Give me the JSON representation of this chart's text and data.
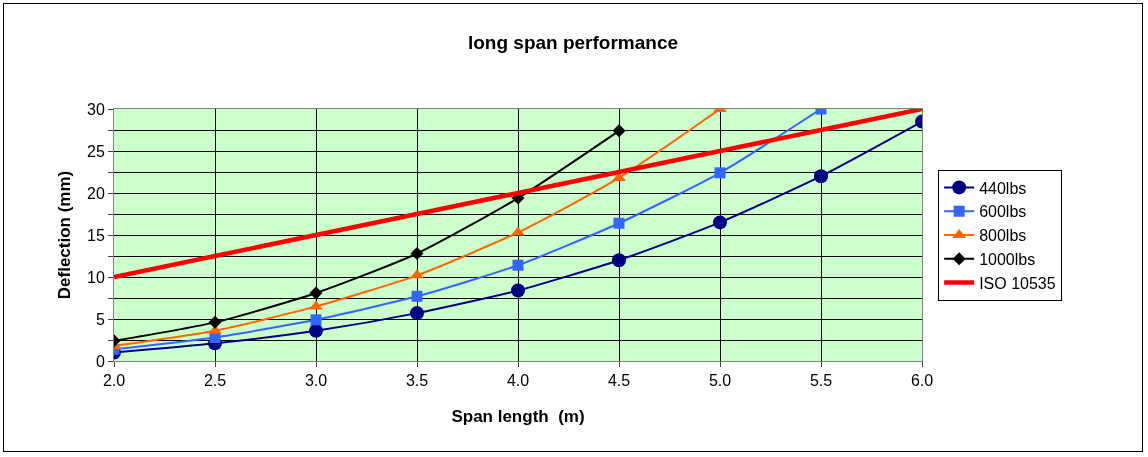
{
  "chart_data": {
    "type": "line",
    "title": "long span performance",
    "xlabel": "Span length  (m)",
    "ylabel": "Deflection (mm)",
    "x": [
      2.0,
      2.5,
      3.0,
      3.5,
      4.0,
      4.5,
      5.0,
      5.5,
      6.0
    ],
    "series": [
      {
        "name": "440lbs",
        "color": "#000080",
        "marker": "circle",
        "values": [
          1.0,
          2.1,
          3.6,
          5.7,
          8.4,
          12.0,
          16.5,
          22.0,
          28.5
        ]
      },
      {
        "name": "600lbs",
        "color": "#3366ff",
        "marker": "square",
        "values": [
          1.4,
          2.8,
          4.9,
          7.7,
          11.4,
          16.4,
          22.4,
          30.0,
          null
        ]
      },
      {
        "name": "800lbs",
        "color": "#ff6600",
        "marker": "triangle",
        "values": [
          1.8,
          3.6,
          6.5,
          10.2,
          15.3,
          21.8,
          30.0,
          null,
          null
        ]
      },
      {
        "name": "1000lbs",
        "color": "#000000",
        "marker": "diamond",
        "values": [
          2.4,
          4.6,
          8.1,
          12.8,
          19.4,
          27.4,
          null,
          null,
          null
        ]
      },
      {
        "name": "ISO 10535",
        "color": "#ff0000",
        "marker": "none",
        "values": [
          10,
          12.5,
          15,
          17.5,
          20,
          22.5,
          25,
          27.5,
          30
        ]
      }
    ],
    "xlim": [
      2.0,
      6.0
    ],
    "xticks": [
      {
        "value": 2.0,
        "label": "2.0"
      },
      {
        "value": 2.5,
        "label": "2.5"
      },
      {
        "value": 3.0,
        "label": "3.0"
      },
      {
        "value": 3.5,
        "label": "3.5"
      },
      {
        "value": 4.0,
        "label": "4.0"
      },
      {
        "value": 4.5,
        "label": "4.5"
      },
      {
        "value": 5.0,
        "label": "5.0"
      },
      {
        "value": 5.5,
        "label": "5.5"
      },
      {
        "value": 6.0,
        "label": "6.0"
      }
    ],
    "ylim": [
      0,
      30
    ],
    "yticks": [
      0,
      {
        "value": 2.5,
        "label": null
      },
      5,
      {
        "value": 7.5,
        "label": null
      },
      10,
      {
        "value": 12.5,
        "label": null
      },
      15,
      {
        "value": 17.5,
        "label": null
      },
      20,
      {
        "value": 22.5,
        "label": null
      },
      25,
      {
        "value": 27.5,
        "label": null
      },
      30
    ],
    "grid": true,
    "legend": "right",
    "line_style": "solid"
  }
}
